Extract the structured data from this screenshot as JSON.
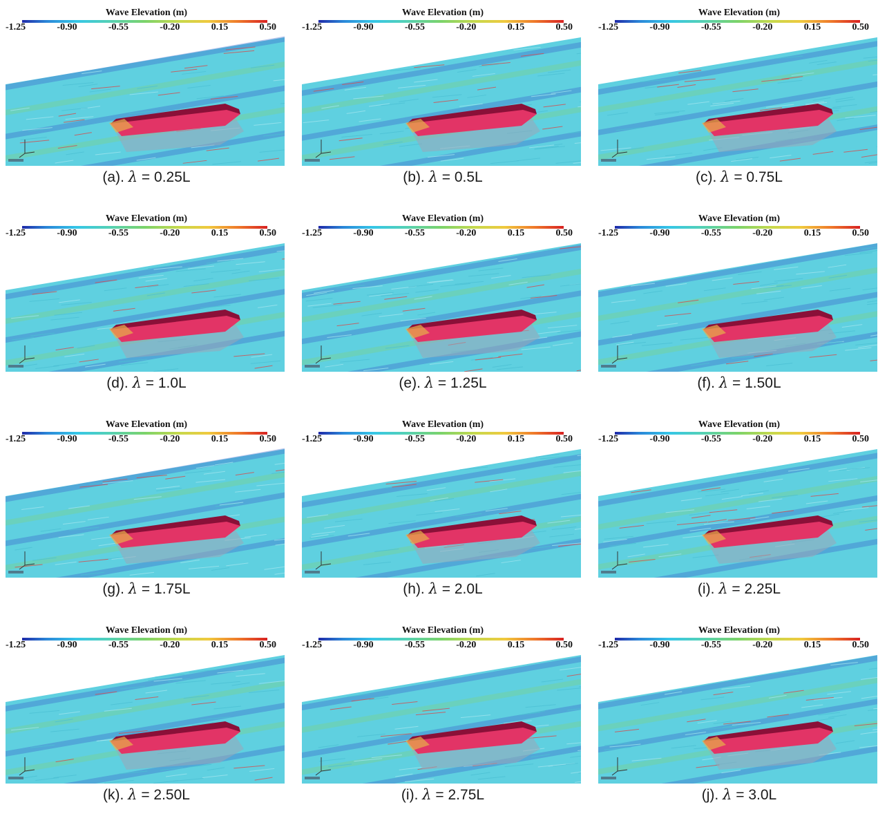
{
  "colorbar": {
    "title": "Wave Elevation (m)",
    "ticks": [
      "-1.25",
      "-0.90",
      "-0.55",
      "-0.20",
      "0.15",
      "0.50"
    ],
    "gradient": [
      "#1f2aa8",
      "#2a86d8",
      "#35c6e8",
      "#55d1b4",
      "#7bd36a",
      "#c7d94c",
      "#f0c93e",
      "#ef7a2a",
      "#d82222"
    ]
  },
  "panels": [
    {
      "prefix": "(a). ",
      "value": "0.25L"
    },
    {
      "prefix": "(b). ",
      "value": "0.5L"
    },
    {
      "prefix": "(c). ",
      "value": "0.75L"
    },
    {
      "prefix": "(d). ",
      "value": "1.0L"
    },
    {
      "prefix": "(e). ",
      "value": "1.25L"
    },
    {
      "prefix": "(f). ",
      "value": "1.50L"
    },
    {
      "prefix": "(g). ",
      "value": "1.75L"
    },
    {
      "prefix": "(h). ",
      "value": "2.0L"
    },
    {
      "prefix": "(i). ",
      "value": "2.25L"
    },
    {
      "prefix": "(k). ",
      "value": "2.50L"
    },
    {
      "prefix": "(i). ",
      "value": "2.75L"
    },
    {
      "prefix": "(j). ",
      "value": "3.0L"
    }
  ],
  "caption": {
    "lambda": "λ",
    "equals": " = "
  },
  "colors": {
    "water": "#5fd0e0",
    "water_light": "#9fe4ee",
    "trough": "#3a5ec8",
    "crest": "#86d36e",
    "hull_deck": "#8a1038",
    "hull_side": "#e23466",
    "hull_shadow": "#9aa6b8"
  }
}
